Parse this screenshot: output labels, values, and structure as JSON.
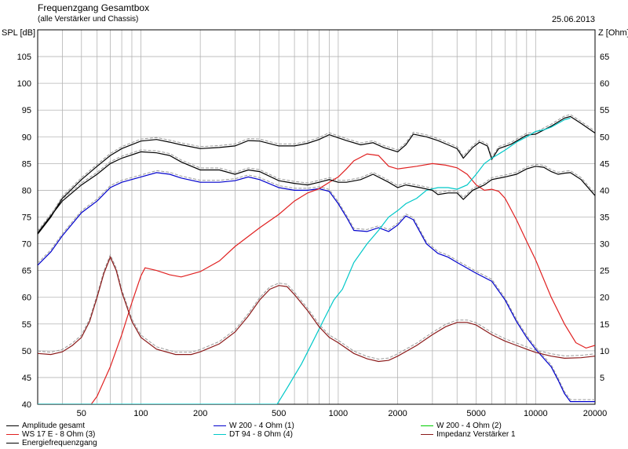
{
  "header": {
    "title": "Frequenzgang Gesamtbox",
    "subtitle": "(alle Verstärker und Chassis)",
    "date": "25.06.2013"
  },
  "chart_data": {
    "type": "line",
    "xscale": "log",
    "xlim": [
      30,
      20000
    ],
    "ylim": [
      40,
      110
    ],
    "y2lim": [
      0,
      70
    ],
    "ylabel": "SPL [dB]",
    "y2label": "Z [Ohm]",
    "xticks": [
      50,
      100,
      200,
      500,
      1000,
      2000,
      5000,
      10000,
      20000
    ],
    "xtick_labels": [
      "50",
      "100",
      "200",
      "500",
      "1000",
      "2000",
      "5000",
      "10000",
      "20000"
    ],
    "yticks": [
      40,
      45,
      50,
      55,
      60,
      65,
      70,
      75,
      80,
      85,
      90,
      95,
      100,
      105
    ],
    "y2ticks": [
      5,
      10,
      15,
      20,
      25,
      30,
      35,
      40,
      45,
      50,
      55,
      60,
      65
    ],
    "grid": true,
    "legend_position": "bottom",
    "series": [
      {
        "name": "Amplitude gesamt",
        "color": "#000000",
        "axis": "left",
        "points": [
          [
            30,
            71.8
          ],
          [
            35,
            75
          ],
          [
            40,
            78.5
          ],
          [
            50,
            82
          ],
          [
            60,
            84.5
          ],
          [
            70,
            86.5
          ],
          [
            80,
            87.8
          ],
          [
            100,
            89.2
          ],
          [
            120,
            89.5
          ],
          [
            140,
            89
          ],
          [
            160,
            88.5
          ],
          [
            200,
            87.8
          ],
          [
            250,
            88
          ],
          [
            300,
            88.3
          ],
          [
            350,
            89.3
          ],
          [
            400,
            89.2
          ],
          [
            500,
            88.3
          ],
          [
            600,
            88.3
          ],
          [
            700,
            88.8
          ],
          [
            800,
            89.5
          ],
          [
            900,
            90.4
          ],
          [
            1000,
            89.8
          ],
          [
            1100,
            89.3
          ],
          [
            1300,
            88.5
          ],
          [
            1500,
            88.9
          ],
          [
            1700,
            88
          ],
          [
            2000,
            87.2
          ],
          [
            2200,
            88.5
          ],
          [
            2400,
            90.5
          ],
          [
            2800,
            90
          ],
          [
            3200,
            89.3
          ],
          [
            3600,
            88.5
          ],
          [
            4000,
            87.8
          ],
          [
            4300,
            86
          ],
          [
            4800,
            88
          ],
          [
            5200,
            89
          ],
          [
            5700,
            88.3
          ],
          [
            6000,
            85.8
          ],
          [
            6500,
            87.8
          ],
          [
            7500,
            88.6
          ],
          [
            9000,
            90.3
          ],
          [
            10000,
            90.5
          ],
          [
            12000,
            92
          ],
          [
            14000,
            93.5
          ],
          [
            15000,
            93.8
          ],
          [
            17000,
            92.5
          ],
          [
            20000,
            90.7
          ]
        ]
      },
      {
        "name": "W 200 - 4 Ohm (1)",
        "color": "#0000cc",
        "axis": "left",
        "points": [
          [
            30,
            66
          ],
          [
            35,
            68.5
          ],
          [
            40,
            71.5
          ],
          [
            50,
            75.8
          ],
          [
            60,
            78
          ],
          [
            70,
            80.5
          ],
          [
            80,
            81.5
          ],
          [
            100,
            82.5
          ],
          [
            120,
            83.3
          ],
          [
            140,
            83
          ],
          [
            160,
            82.3
          ],
          [
            200,
            81.5
          ],
          [
            250,
            81.5
          ],
          [
            300,
            81.8
          ],
          [
            350,
            82.5
          ],
          [
            400,
            82
          ],
          [
            500,
            80.5
          ],
          [
            600,
            80
          ],
          [
            700,
            80
          ],
          [
            800,
            80.3
          ],
          [
            900,
            79.8
          ],
          [
            1000,
            77.5
          ],
          [
            1100,
            75
          ],
          [
            1200,
            72.5
          ],
          [
            1400,
            72.3
          ],
          [
            1600,
            73
          ],
          [
            1800,
            72.3
          ],
          [
            2000,
            73.5
          ],
          [
            2200,
            75.2
          ],
          [
            2400,
            74.5
          ],
          [
            2800,
            70
          ],
          [
            3200,
            68.2
          ],
          [
            3600,
            67.5
          ],
          [
            4000,
            66.5
          ],
          [
            5000,
            64.5
          ],
          [
            6000,
            63
          ],
          [
            7000,
            59.5
          ],
          [
            8000,
            55.5
          ],
          [
            9000,
            52.5
          ],
          [
            10000,
            50.3
          ],
          [
            12000,
            47
          ],
          [
            13000,
            44.5
          ],
          [
            14000,
            42
          ],
          [
            15000,
            40.5
          ],
          [
            20000,
            40.5
          ]
        ]
      },
      {
        "name": "W 200 - 4 Ohm (2)",
        "color": "#00cc00",
        "axis": "left",
        "points": []
      },
      {
        "name": "WS 17 E - 8 Ohm  (3)",
        "color": "#e02020",
        "axis": "left",
        "points": [
          [
            30,
            40
          ],
          [
            56,
            40
          ],
          [
            60,
            41.5
          ],
          [
            70,
            47
          ],
          [
            80,
            53
          ],
          [
            90,
            59
          ],
          [
            100,
            64
          ],
          [
            105,
            65.5
          ],
          [
            120,
            65
          ],
          [
            140,
            64.2
          ],
          [
            160,
            63.8
          ],
          [
            200,
            64.8
          ],
          [
            250,
            66.8
          ],
          [
            300,
            69.5
          ],
          [
            400,
            73
          ],
          [
            500,
            75.5
          ],
          [
            600,
            78
          ],
          [
            700,
            79.5
          ],
          [
            800,
            80.3
          ],
          [
            900,
            81.5
          ],
          [
            1000,
            82.5
          ],
          [
            1100,
            84
          ],
          [
            1200,
            85.5
          ],
          [
            1400,
            86.8
          ],
          [
            1600,
            86.5
          ],
          [
            1800,
            84.5
          ],
          [
            2000,
            84
          ],
          [
            2500,
            84.5
          ],
          [
            3000,
            85
          ],
          [
            3500,
            84.7
          ],
          [
            4000,
            84.2
          ],
          [
            4500,
            83
          ],
          [
            5000,
            81
          ],
          [
            5500,
            80
          ],
          [
            6000,
            80.2
          ],
          [
            6500,
            79.8
          ],
          [
            7000,
            78.5
          ],
          [
            8000,
            74.5
          ],
          [
            9000,
            70.5
          ],
          [
            10000,
            67
          ],
          [
            12000,
            60
          ],
          [
            14000,
            55
          ],
          [
            16000,
            51.5
          ],
          [
            18000,
            50.5
          ],
          [
            20000,
            51
          ]
        ]
      },
      {
        "name": "DT 94 - 8 Ohm (4)",
        "color": "#00c8c8",
        "axis": "left",
        "points": [
          [
            30,
            40
          ],
          [
            490,
            40
          ],
          [
            550,
            43
          ],
          [
            650,
            47.5
          ],
          [
            750,
            52
          ],
          [
            850,
            56
          ],
          [
            950,
            59.5
          ],
          [
            1050,
            61.5
          ],
          [
            1200,
            66.5
          ],
          [
            1400,
            70
          ],
          [
            1600,
            72.5
          ],
          [
            1800,
            75
          ],
          [
            2000,
            76.2
          ],
          [
            2200,
            77.5
          ],
          [
            2500,
            78.5
          ],
          [
            2800,
            80
          ],
          [
            3200,
            80.5
          ],
          [
            3600,
            80.5
          ],
          [
            4000,
            80.2
          ],
          [
            4500,
            81
          ],
          [
            5000,
            83
          ],
          [
            5500,
            85
          ],
          [
            6000,
            86
          ],
          [
            7000,
            87.5
          ],
          [
            8000,
            89
          ],
          [
            9000,
            90
          ],
          [
            10000,
            91
          ],
          [
            11000,
            91.3
          ],
          [
            12000,
            91.8
          ],
          [
            14000,
            93.2
          ],
          [
            15000,
            93.5
          ]
        ]
      },
      {
        "name": "Impedanz Verstärker 1",
        "color": "#8b1a1a",
        "axis": "right",
        "points": [
          [
            30,
            9.5
          ],
          [
            35,
            9.3
          ],
          [
            40,
            9.8
          ],
          [
            45,
            11
          ],
          [
            50,
            12.5
          ],
          [
            55,
            15.5
          ],
          [
            60,
            20
          ],
          [
            65,
            24.5
          ],
          [
            70,
            27.5
          ],
          [
            75,
            25
          ],
          [
            80,
            21
          ],
          [
            90,
            15.5
          ],
          [
            100,
            12.5
          ],
          [
            120,
            10.3
          ],
          [
            150,
            9.3
          ],
          [
            180,
            9.3
          ],
          [
            200,
            9.8
          ],
          [
            250,
            11.3
          ],
          [
            300,
            13.5
          ],
          [
            350,
            16.5
          ],
          [
            400,
            19.5
          ],
          [
            450,
            21.5
          ],
          [
            500,
            22.2
          ],
          [
            550,
            22
          ],
          [
            600,
            20.5
          ],
          [
            700,
            17.5
          ],
          [
            800,
            14.5
          ],
          [
            900,
            12.5
          ],
          [
            1000,
            11.5
          ],
          [
            1200,
            9.5
          ],
          [
            1400,
            8.5
          ],
          [
            1600,
            8
          ],
          [
            1800,
            8.2
          ],
          [
            2000,
            9
          ],
          [
            2500,
            11
          ],
          [
            3000,
            13
          ],
          [
            3500,
            14.5
          ],
          [
            4000,
            15.3
          ],
          [
            4500,
            15.3
          ],
          [
            5000,
            14.8
          ],
          [
            6000,
            13
          ],
          [
            7000,
            11.8
          ],
          [
            8000,
            11
          ],
          [
            9000,
            10.3
          ],
          [
            10000,
            9.7
          ],
          [
            12000,
            9
          ],
          [
            14000,
            8.6
          ],
          [
            17000,
            8.7
          ],
          [
            20000,
            9
          ]
        ]
      },
      {
        "name": "Energiefrequenzgang",
        "color": "#000000",
        "axis": "left",
        "points": [
          [
            30,
            72
          ],
          [
            40,
            78
          ],
          [
            50,
            81
          ],
          [
            60,
            83
          ],
          [
            70,
            85
          ],
          [
            80,
            86
          ],
          [
            100,
            87.2
          ],
          [
            120,
            87
          ],
          [
            140,
            86.5
          ],
          [
            160,
            85.3
          ],
          [
            200,
            83.8
          ],
          [
            250,
            83.8
          ],
          [
            300,
            83
          ],
          [
            350,
            83.8
          ],
          [
            400,
            83.5
          ],
          [
            500,
            81.8
          ],
          [
            600,
            81.3
          ],
          [
            700,
            81
          ],
          [
            800,
            81.5
          ],
          [
            900,
            82
          ],
          [
            1000,
            81.5
          ],
          [
            1100,
            81.5
          ],
          [
            1300,
            82
          ],
          [
            1500,
            83
          ],
          [
            1800,
            81.5
          ],
          [
            2000,
            80.5
          ],
          [
            2200,
            81
          ],
          [
            2600,
            80.5
          ],
          [
            3000,
            80
          ],
          [
            3200,
            79.2
          ],
          [
            3600,
            79.5
          ],
          [
            4000,
            79.5
          ],
          [
            4300,
            78.3
          ],
          [
            4800,
            80
          ],
          [
            5500,
            81
          ],
          [
            6000,
            82
          ],
          [
            7000,
            82.5
          ],
          [
            8000,
            83
          ],
          [
            9000,
            84
          ],
          [
            10000,
            84.5
          ],
          [
            11000,
            84.3
          ],
          [
            12000,
            83.5
          ],
          [
            13000,
            83
          ],
          [
            14000,
            83.2
          ],
          [
            15000,
            83.3
          ],
          [
            17000,
            82
          ],
          [
            20000,
            79
          ]
        ]
      }
    ]
  },
  "legend": {
    "items": [
      {
        "label": "Amplitude gesamt",
        "color": "#000000"
      },
      {
        "label": "W 200 - 4 Ohm (1)",
        "color": "#0000cc"
      },
      {
        "label": "W 200 - 4 Ohm (2)",
        "color": "#00cc00"
      },
      {
        "label": "WS 17 E - 8 Ohm  (3)",
        "color": "#e02020"
      },
      {
        "label": "DT 94 - 8 Ohm (4)",
        "color": "#00c8c8"
      },
      {
        "label": "Impedanz Verstärker 1",
        "color": "#8b1a1a"
      },
      {
        "label": "Energiefrequenzgang",
        "color": "#000000"
      }
    ]
  }
}
